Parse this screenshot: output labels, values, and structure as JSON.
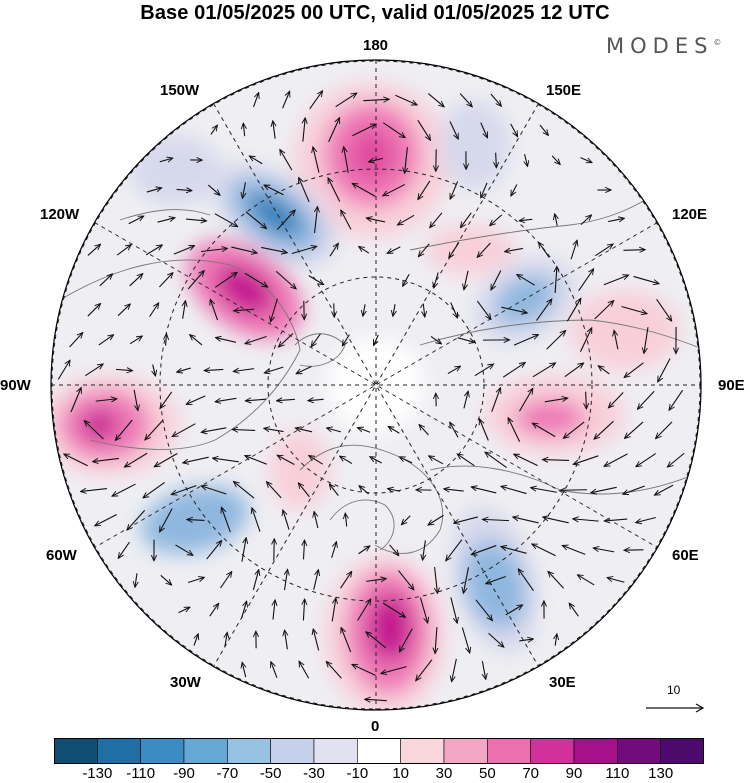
{
  "header": {
    "title": "Base 01/05/2025 00 UTC, valid 01/05/2025 12 UTC",
    "brand": "MODES",
    "brand_mark": "©"
  },
  "map": {
    "projection": "north-polar-stereographic",
    "longitude_labels": [
      "180",
      "150E",
      "120E",
      "90E",
      "60E",
      "30E",
      "0",
      "30W",
      "60W",
      "90W",
      "120W",
      "150W"
    ],
    "field_colors": {
      "strong_positive": "#c41890",
      "positive": "#ee78b6",
      "weak_positive": "#f8cfd9",
      "neutral": "#efefef",
      "weak_negative": "#d6d8ec",
      "negative": "#8fb7df",
      "strong_negative": "#2f7fba"
    }
  },
  "reference_vector": {
    "value": "10"
  },
  "colorbar": {
    "ticks": [
      "-130",
      "-110",
      "-90",
      "-70",
      "-50",
      "-30",
      "-10",
      "10",
      "30",
      "50",
      "70",
      "90",
      "110",
      "130"
    ],
    "colors": [
      "#0f4d73",
      "#1f6ea4",
      "#3b8cc4",
      "#66a8d4",
      "#98c2e2",
      "#c5d1ea",
      "#e2e1f0",
      "#ffffff",
      "#f9d5dc",
      "#f3a6c3",
      "#ec6fae",
      "#d2309b",
      "#a61088",
      "#740b7c",
      "#4b0a6c"
    ]
  }
}
